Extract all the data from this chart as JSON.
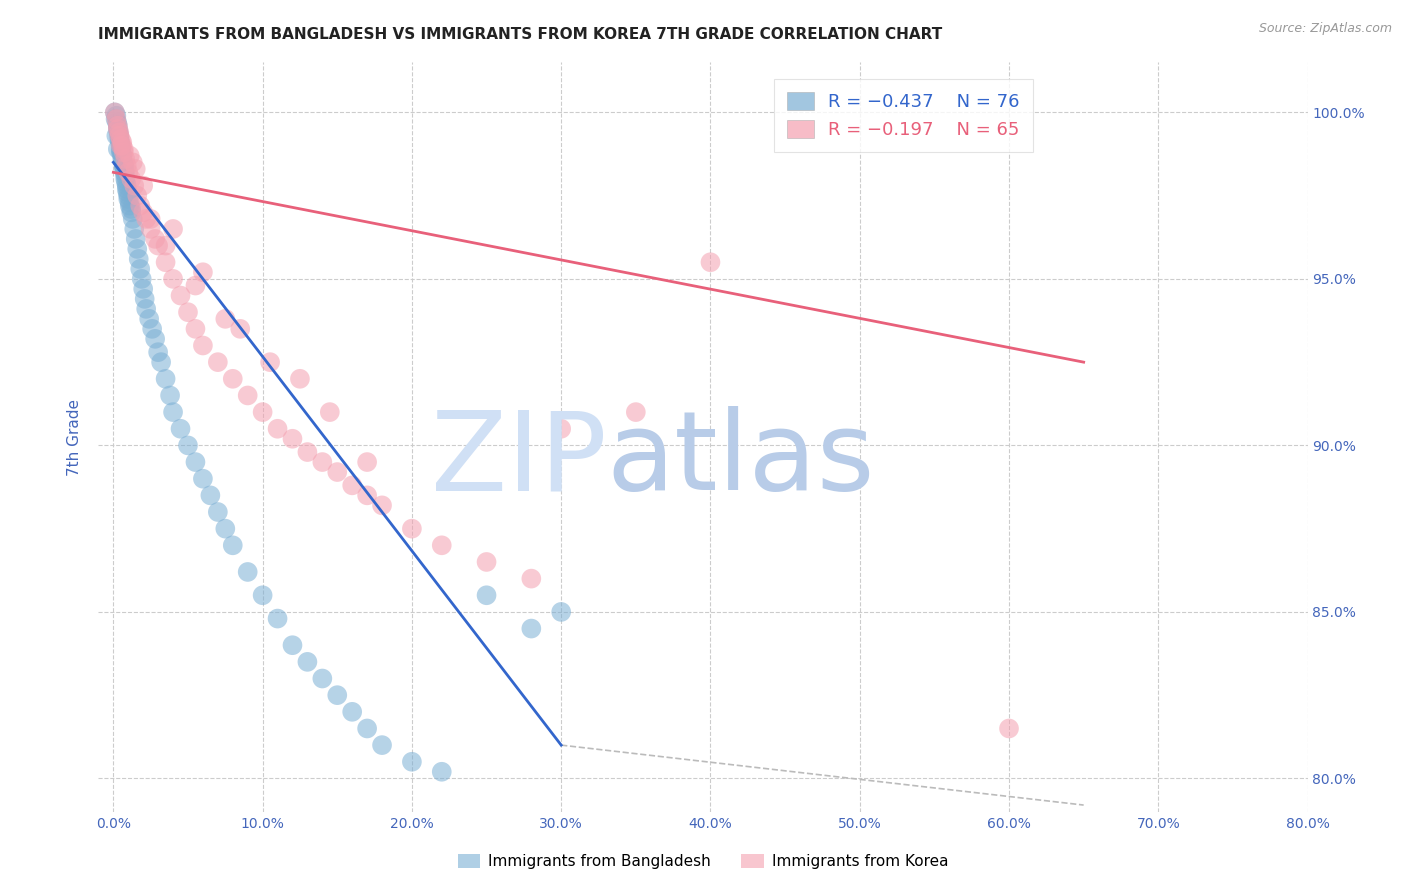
{
  "title": "IMMIGRANTS FROM BANGLADESH VS IMMIGRANTS FROM KOREA 7TH GRADE CORRELATION CHART",
  "source": "Source: ZipAtlas.com",
  "ylabel": "7th Grade",
  "y_ticks": [
    80.0,
    85.0,
    90.0,
    95.0,
    100.0
  ],
  "y_tick_labels": [
    "80.0%",
    "85.0%",
    "90.0%",
    "95.0%",
    "100.0%"
  ],
  "x_ticks": [
    0.0,
    10.0,
    20.0,
    30.0,
    40.0,
    50.0,
    60.0,
    70.0,
    80.0
  ],
  "x_tick_labels": [
    "0.0%",
    "10.0%",
    "20.0%",
    "30.0%",
    "40.0%",
    "50.0%",
    "60.0%",
    "70.0%",
    "80.0%"
  ],
  "xlim": [
    -1.0,
    80.0
  ],
  "ylim": [
    79.0,
    101.5
  ],
  "blue_color": "#7bafd4",
  "pink_color": "#f4a0b0",
  "blue_line_color": "#3366cc",
  "pink_line_color": "#e8607a",
  "background_color": "#ffffff",
  "title_color": "#222222",
  "axis_label_color": "#4466bb",
  "tick_label_color": "#4466bb",
  "watermark_color_zip": "#d0e0f5",
  "watermark_color_atlas": "#b8cce8",
  "blue_scatter_x": [
    0.1,
    0.15,
    0.2,
    0.25,
    0.3,
    0.3,
    0.35,
    0.4,
    0.4,
    0.45,
    0.5,
    0.5,
    0.55,
    0.6,
    0.6,
    0.65,
    0.7,
    0.7,
    0.75,
    0.8,
    0.8,
    0.85,
    0.9,
    0.9,
    0.95,
    1.0,
    1.0,
    1.1,
    1.1,
    1.2,
    1.2,
    1.3,
    1.4,
    1.5,
    1.6,
    1.7,
    1.8,
    1.9,
    2.0,
    2.1,
    2.2,
    2.4,
    2.6,
    2.8,
    3.0,
    3.2,
    3.5,
    3.8,
    4.0,
    4.5,
    5.0,
    5.5,
    6.0,
    6.5,
    7.0,
    7.5,
    8.0,
    9.0,
    10.0,
    11.0,
    12.0,
    13.0,
    14.0,
    15.0,
    16.0,
    17.0,
    18.0,
    20.0,
    22.0,
    25.0,
    28.0,
    30.0,
    0.2,
    0.3,
    0.5,
    0.7
  ],
  "blue_scatter_y": [
    100.0,
    99.8,
    99.9,
    99.7,
    99.6,
    99.5,
    99.4,
    99.3,
    99.2,
    99.1,
    99.0,
    98.9,
    98.8,
    98.7,
    98.6,
    98.5,
    98.4,
    98.3,
    98.2,
    98.1,
    98.0,
    97.9,
    97.8,
    97.7,
    97.6,
    97.5,
    97.4,
    97.3,
    97.2,
    97.1,
    97.0,
    96.8,
    96.5,
    96.2,
    95.9,
    95.6,
    95.3,
    95.0,
    94.7,
    94.4,
    94.1,
    93.8,
    93.5,
    93.2,
    92.8,
    92.5,
    92.0,
    91.5,
    91.0,
    90.5,
    90.0,
    89.5,
    89.0,
    88.5,
    88.0,
    87.5,
    87.0,
    86.2,
    85.5,
    84.8,
    84.0,
    83.5,
    83.0,
    82.5,
    82.0,
    81.5,
    81.0,
    80.5,
    80.2,
    85.5,
    84.5,
    85.0,
    99.3,
    98.9,
    98.8,
    98.4
  ],
  "pink_scatter_x": [
    0.1,
    0.2,
    0.3,
    0.4,
    0.5,
    0.6,
    0.7,
    0.8,
    0.9,
    1.0,
    1.2,
    1.4,
    1.6,
    1.8,
    2.0,
    2.2,
    2.5,
    2.8,
    3.0,
    3.5,
    4.0,
    4.5,
    5.0,
    5.5,
    6.0,
    7.0,
    8.0,
    9.0,
    10.0,
    11.0,
    12.0,
    13.0,
    14.0,
    15.0,
    16.0,
    17.0,
    18.0,
    20.0,
    22.0,
    25.0,
    28.0,
    30.0,
    35.0,
    40.0,
    60.0,
    0.3,
    0.5,
    0.7,
    1.1,
    1.5,
    2.5,
    3.5,
    5.5,
    7.5,
    10.5,
    14.5,
    0.4,
    0.6,
    1.3,
    2.0,
    4.0,
    6.0,
    8.5,
    12.5,
    17.0
  ],
  "pink_scatter_y": [
    100.0,
    99.8,
    99.6,
    99.4,
    99.2,
    99.0,
    98.8,
    98.6,
    98.4,
    98.2,
    98.0,
    97.8,
    97.5,
    97.2,
    97.0,
    96.8,
    96.5,
    96.2,
    96.0,
    95.5,
    95.0,
    94.5,
    94.0,
    93.5,
    93.0,
    92.5,
    92.0,
    91.5,
    91.0,
    90.5,
    90.2,
    89.8,
    89.5,
    89.2,
    88.8,
    88.5,
    88.2,
    87.5,
    87.0,
    86.5,
    86.0,
    90.5,
    91.0,
    95.5,
    81.5,
    99.5,
    99.0,
    98.9,
    98.7,
    98.3,
    96.8,
    96.0,
    94.8,
    93.8,
    92.5,
    91.0,
    99.3,
    99.1,
    98.5,
    97.8,
    96.5,
    95.2,
    93.5,
    92.0,
    89.5
  ],
  "blue_trend_x": [
    0.0,
    30.0
  ],
  "blue_trend_y": [
    98.5,
    81.0
  ],
  "pink_trend_x": [
    0.0,
    65.0
  ],
  "pink_trend_y": [
    98.2,
    92.5
  ],
  "dash_line_x": [
    30.0,
    65.0
  ],
  "dash_line_y": [
    81.0,
    79.2
  ],
  "legend_r_blue": "R = −0.437",
  "legend_n_blue": "N = 76",
  "legend_r_pink": "R = −0.197",
  "legend_n_pink": "N = 65",
  "legend_label_blue": "Immigrants from Bangladesh",
  "legend_label_pink": "Immigrants from Korea"
}
